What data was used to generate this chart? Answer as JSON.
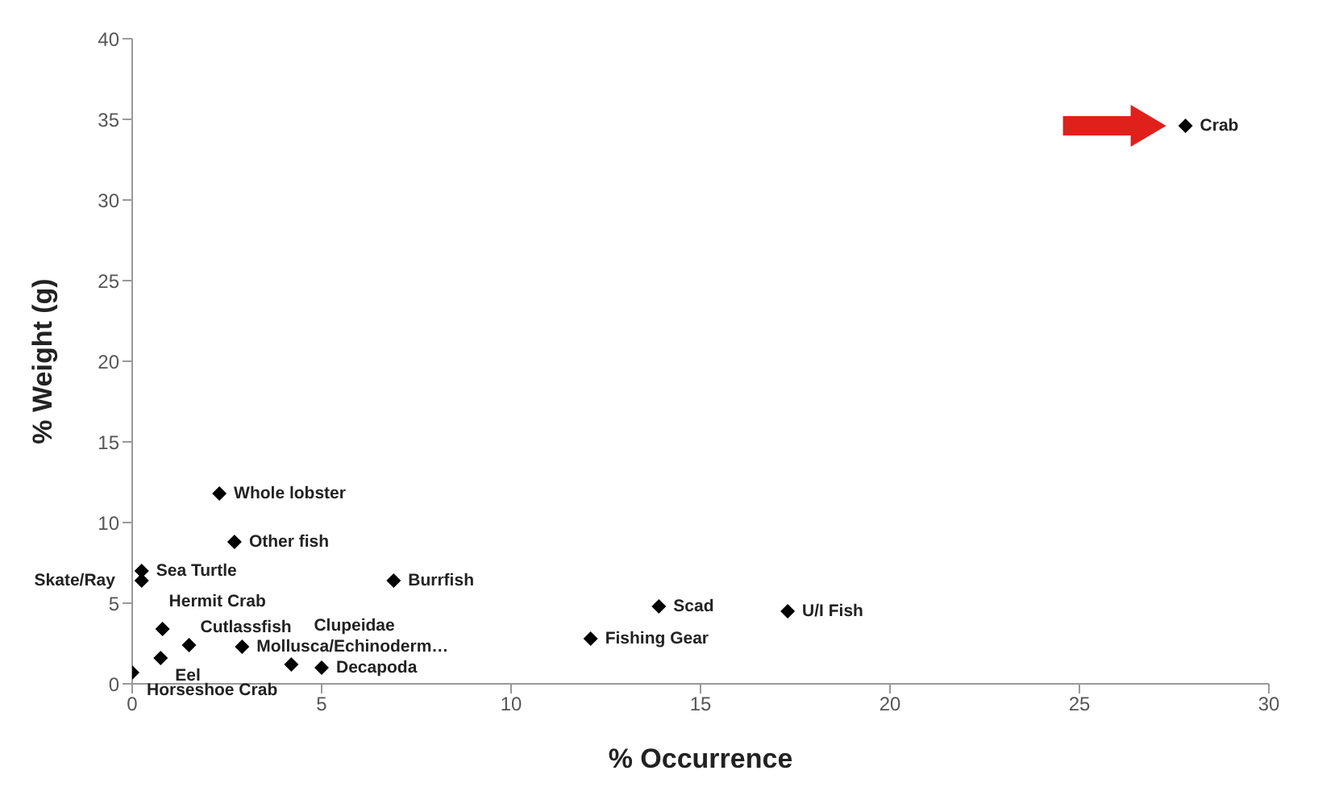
{
  "chart_data": {
    "type": "scatter",
    "xlabel": "% Occurrence",
    "ylabel": "% Weight (g)",
    "marker": "diamond",
    "x": [
      27.8,
      2.3,
      2.7,
      0.25,
      0.25,
      6.9,
      0.8,
      1.5,
      2.9,
      0.75,
      0,
      4.2,
      5.0,
      13.9,
      17.3,
      12.1
    ],
    "values": [
      34.6,
      11.8,
      8.8,
      7.0,
      6.4,
      6.4,
      3.4,
      2.4,
      2.3,
      1.6,
      0.7,
      1.2,
      1.0,
      4.8,
      4.5,
      2.8
    ],
    "color": "#000000",
    "xlim": [
      0,
      30
    ],
    "xticks": [
      0,
      5,
      10,
      15,
      20,
      25,
      30
    ],
    "ylim": [
      0,
      40
    ],
    "yticks": [
      0,
      5,
      10,
      15,
      20,
      25,
      30,
      35,
      40
    ],
    "annotations": [
      {
        "text": "Crab",
        "x": 27.8,
        "y": 34.6
      },
      {
        "text": "Whole lobster",
        "x": 2.3,
        "y": 11.8
      },
      {
        "text": "Other fish",
        "x": 2.7,
        "y": 8.8
      },
      {
        "text": "Sea Turtle",
        "x": 0.25,
        "y": 7.0
      },
      {
        "text": "Skate/Ray",
        "x": 0.25,
        "y": 6.4
      },
      {
        "text": "Burrfish",
        "x": 6.9,
        "y": 6.4
      },
      {
        "text": "Hermit Crab",
        "x": 0.8,
        "y": 3.4
      },
      {
        "text": "Cutlassfish",
        "x": 1.5,
        "y": 2.4
      },
      {
        "text": "Mollusca/Echinoderm…",
        "x": 2.9,
        "y": 2.3
      },
      {
        "text": "Eel",
        "x": 0.75,
        "y": 1.6
      },
      {
        "text": "Horseshoe Crab",
        "x": 0,
        "y": 0.7
      },
      {
        "text": "Clupeidae",
        "x": 4.2,
        "y": 1.2
      },
      {
        "text": "Decapoda",
        "x": 5.0,
        "y": 1.0
      },
      {
        "text": "Scad",
        "x": 13.9,
        "y": 4.8
      },
      {
        "text": "U/I Fish",
        "x": 17.3,
        "y": 4.5
      },
      {
        "text": "Fishing Gear",
        "x": 12.1,
        "y": 2.8
      }
    ]
  }
}
